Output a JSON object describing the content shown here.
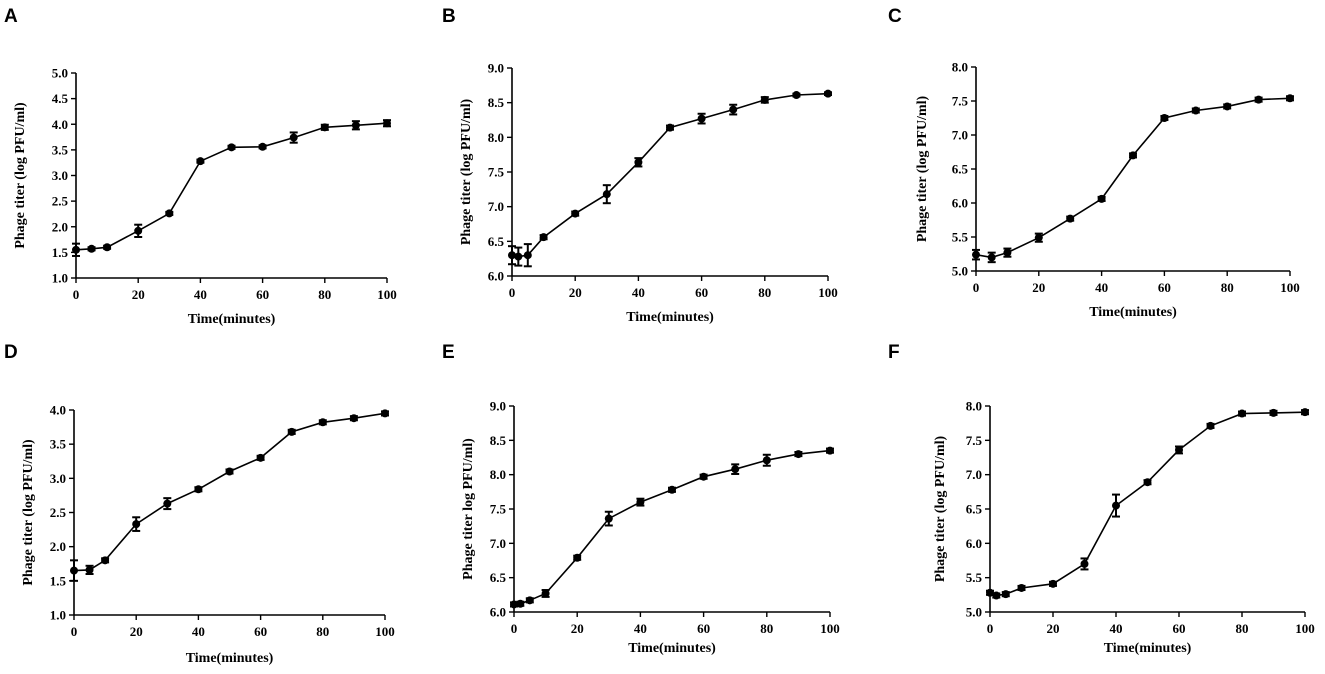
{
  "chart_data": [
    {
      "panel": "A",
      "type": "line",
      "xlabel": "Time(minutes)",
      "ylabel": "Phage titer (log PFU/ml)",
      "xlim": [
        0,
        100
      ],
      "ylim": [
        1.0,
        5.0
      ],
      "xticks": [
        0,
        20,
        40,
        60,
        80,
        100
      ],
      "yticks": [
        1.0,
        1.5,
        2.0,
        2.5,
        3.0,
        3.5,
        4.0,
        4.5,
        5.0
      ],
      "ytick_labels": [
        "1.0",
        "1.5",
        "2.0",
        "2.5",
        "3.0",
        "3.5",
        "4.0",
        "4.5",
        "5.0"
      ],
      "x": [
        0,
        5,
        10,
        20,
        30,
        40,
        50,
        60,
        70,
        80,
        90,
        100
      ],
      "y": [
        1.55,
        1.57,
        1.6,
        1.92,
        2.26,
        3.28,
        3.55,
        3.56,
        3.74,
        3.94,
        3.98,
        4.02
      ],
      "err": [
        0.12,
        0.03,
        0.03,
        0.12,
        0.03,
        0.03,
        0.03,
        0.03,
        0.1,
        0.05,
        0.08,
        0.06
      ]
    },
    {
      "panel": "B",
      "type": "line",
      "xlabel": "Time(minutes)",
      "ylabel": "Phage titer (log PFU/ml)",
      "xlim": [
        0,
        100
      ],
      "ylim": [
        6.0,
        9.0
      ],
      "xticks": [
        0,
        20,
        40,
        60,
        80,
        100
      ],
      "yticks": [
        6.0,
        6.5,
        7.0,
        7.5,
        8.0,
        8.5,
        9.0
      ],
      "ytick_labels": [
        "6.0",
        "6.5",
        "7.0",
        "7.5",
        "8.0",
        "8.5",
        "9.0"
      ],
      "x": [
        0,
        2,
        5,
        10,
        20,
        30,
        40,
        50,
        60,
        70,
        80,
        90,
        100
      ],
      "y": [
        6.3,
        6.28,
        6.3,
        6.56,
        6.9,
        7.18,
        7.64,
        8.14,
        8.27,
        8.4,
        8.54,
        8.61,
        8.63
      ],
      "err": [
        0.13,
        0.13,
        0.16,
        0.03,
        0.03,
        0.13,
        0.06,
        0.03,
        0.07,
        0.07,
        0.04,
        0.02,
        0.02
      ]
    },
    {
      "panel": "C",
      "type": "line",
      "xlabel": "Time(minutes)",
      "ylabel": "Phage titer (log PFU/ml)",
      "xlim": [
        0,
        100
      ],
      "ylim": [
        5.0,
        8.0
      ],
      "xticks": [
        0,
        20,
        40,
        60,
        80,
        100
      ],
      "yticks": [
        5.0,
        5.5,
        6.0,
        6.5,
        7.0,
        7.5,
        8.0
      ],
      "ytick_labels": [
        "5.0",
        "5.5",
        "6.0",
        "6.5",
        "7.0",
        "7.5",
        "8.0"
      ],
      "x": [
        0,
        5,
        10,
        20,
        30,
        40,
        50,
        60,
        70,
        80,
        90,
        100
      ],
      "y": [
        5.24,
        5.2,
        5.27,
        5.49,
        5.77,
        6.06,
        6.7,
        7.25,
        7.36,
        7.42,
        7.52,
        7.54
      ],
      "err": [
        0.07,
        0.07,
        0.06,
        0.06,
        0.03,
        0.03,
        0.03,
        0.03,
        0.03,
        0.03,
        0.03,
        0.03
      ]
    },
    {
      "panel": "D",
      "type": "line",
      "xlabel": "Time(minutes)",
      "ylabel": "Phage titer (log PFU/ml)",
      "xlim": [
        0,
        100
      ],
      "ylim": [
        1.0,
        4.0
      ],
      "xticks": [
        0,
        20,
        40,
        60,
        80,
        100
      ],
      "yticks": [
        1.0,
        1.5,
        2.0,
        2.5,
        3.0,
        3.5,
        4.0
      ],
      "ytick_labels": [
        "1.0",
        "1.5",
        "2.0",
        "2.5",
        "3.0",
        "3.5",
        "4.0"
      ],
      "x": [
        0,
        5,
        10,
        20,
        30,
        40,
        50,
        60,
        70,
        80,
        90,
        100
      ],
      "y": [
        1.65,
        1.66,
        1.8,
        2.33,
        2.63,
        2.84,
        3.1,
        3.3,
        3.68,
        3.82,
        3.88,
        3.95
      ],
      "err": [
        0.15,
        0.06,
        0.03,
        0.1,
        0.08,
        0.03,
        0.03,
        0.03,
        0.03,
        0.03,
        0.03,
        0.03
      ]
    },
    {
      "panel": "E",
      "type": "line",
      "xlabel": "Time(minutes)",
      "ylabel": "Phage titer log PFU/ml)",
      "xlim": [
        0,
        100
      ],
      "ylim": [
        6.0,
        9.0
      ],
      "xticks": [
        0,
        20,
        40,
        60,
        80,
        100
      ],
      "yticks": [
        6.0,
        6.5,
        7.0,
        7.5,
        8.0,
        8.5,
        9.0
      ],
      "ytick_labels": [
        "6.0",
        "6.5",
        "7.0",
        "7.5",
        "8.0",
        "8.5",
        "9.0"
      ],
      "x": [
        0,
        2,
        5,
        10,
        20,
        30,
        40,
        50,
        60,
        70,
        80,
        90,
        100
      ],
      "y": [
        6.11,
        6.12,
        6.17,
        6.27,
        6.79,
        7.36,
        7.6,
        7.78,
        7.97,
        8.08,
        8.21,
        8.3,
        8.35
      ],
      "err": [
        0.03,
        0.03,
        0.03,
        0.05,
        0.03,
        0.1,
        0.05,
        0.03,
        0.03,
        0.07,
        0.08,
        0.03,
        0.03
      ]
    },
    {
      "panel": "F",
      "type": "line",
      "xlabel": "Time(minutes)",
      "ylabel": "Phage titer (log PFU/ml)",
      "xlim": [
        0,
        100
      ],
      "ylim": [
        5.0,
        8.0
      ],
      "xticks": [
        0,
        20,
        40,
        60,
        80,
        100
      ],
      "yticks": [
        5.0,
        5.5,
        6.0,
        6.5,
        7.0,
        7.5,
        8.0
      ],
      "ytick_labels": [
        "5.0",
        "5.5",
        "6.0",
        "6.5",
        "7.0",
        "7.5",
        "8.0"
      ],
      "x": [
        0,
        2,
        5,
        10,
        20,
        30,
        40,
        50,
        60,
        70,
        80,
        90,
        100
      ],
      "y": [
        5.28,
        5.24,
        5.26,
        5.35,
        5.41,
        5.7,
        6.55,
        6.89,
        7.36,
        7.71,
        7.89,
        7.9,
        7.91
      ],
      "err": [
        0.03,
        0.03,
        0.03,
        0.03,
        0.03,
        0.08,
        0.16,
        0.03,
        0.05,
        0.03,
        0.03,
        0.03,
        0.03
      ]
    }
  ]
}
